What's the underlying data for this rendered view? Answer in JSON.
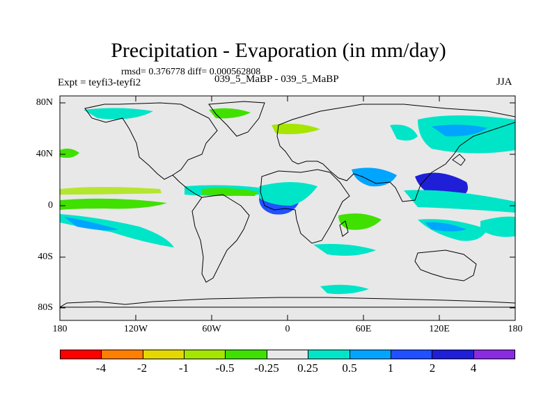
{
  "title": "Precipitation - Evaporation (in mm/day)",
  "stats": "rmsd= 0.376778 diff= 0.000562808",
  "expt": "Expt = teyfi3-teyfi2",
  "case": "039_5_MaBP - 039_5_MaBP",
  "season": "JJA",
  "lat_labels": [
    "80N",
    "40N",
    "0",
    "40S",
    "80S"
  ],
  "lon_labels": [
    "180",
    "120W",
    "60W",
    "0",
    "60E",
    "120E",
    "180"
  ],
  "legend": {
    "colors": [
      "#ff0000",
      "#ff7f00",
      "#e5d800",
      "#a6e500",
      "#40e000",
      "#e8e8e8",
      "#00e5c8",
      "#00a5ff",
      "#2050ff",
      "#1f1fd8",
      "#8a2be2"
    ],
    "labels": [
      "-4",
      "-2",
      "-1",
      "-0.5",
      "-0.25",
      "0.25",
      "0.5",
      "1",
      "2",
      "4"
    ]
  },
  "colors": {
    "background": "#e8e8e8",
    "land_outline": "#000000"
  }
}
